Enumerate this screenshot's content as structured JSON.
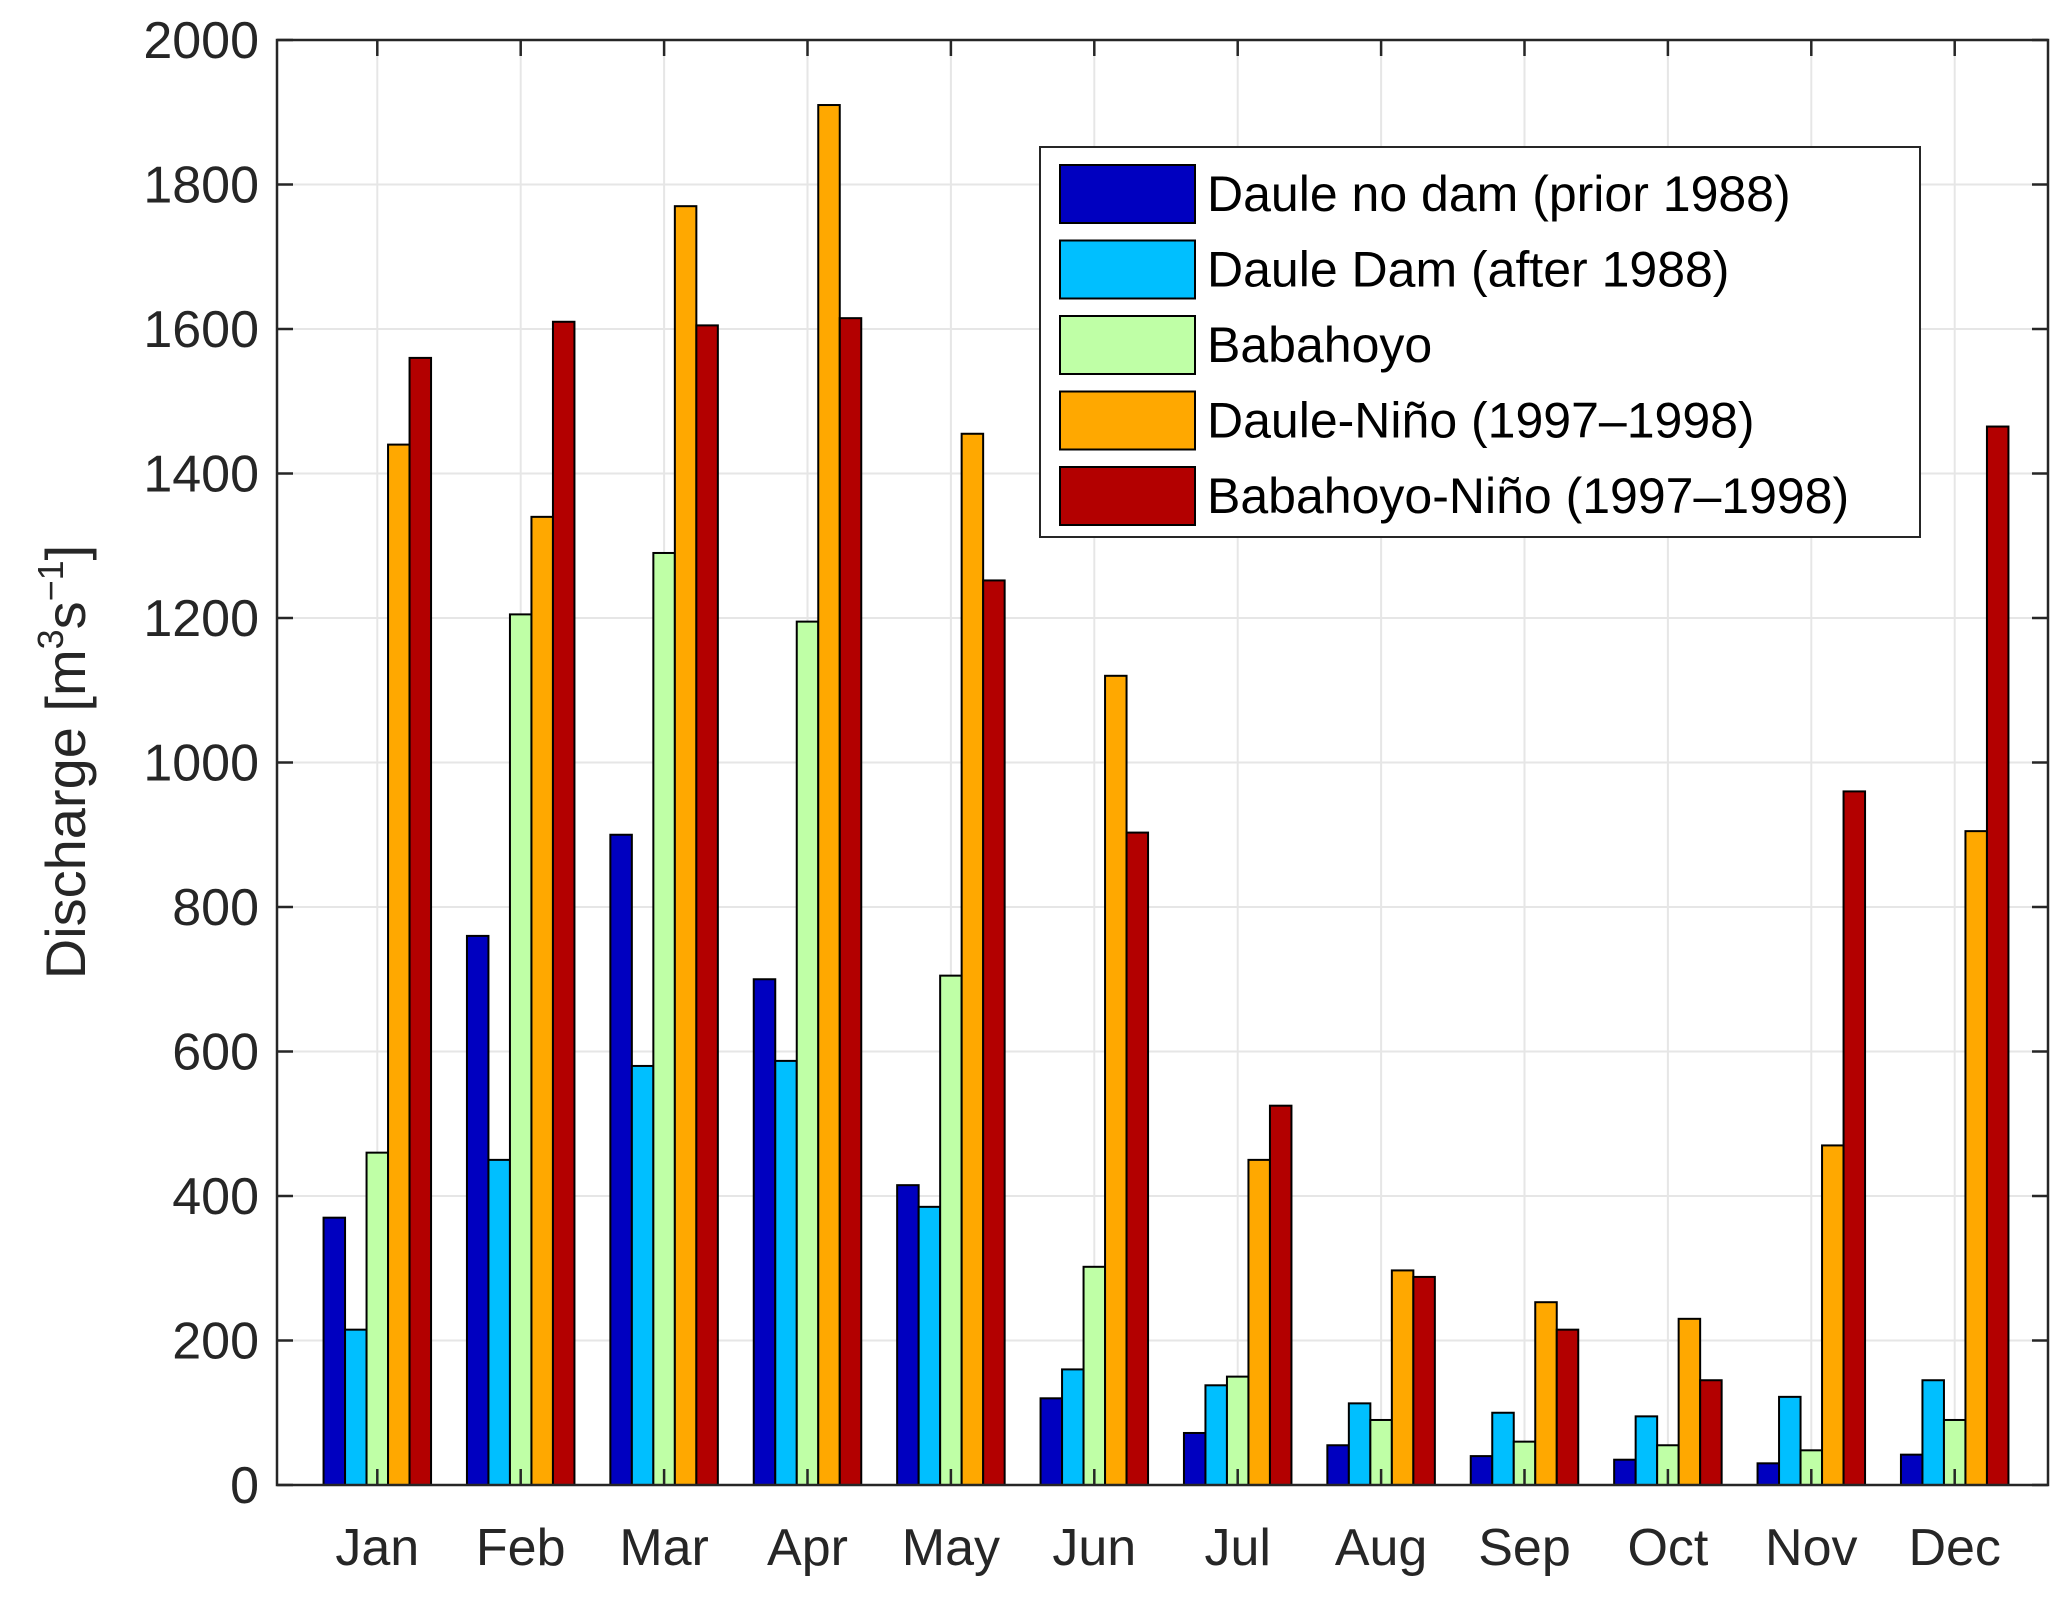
{
  "chart_data": {
    "type": "bar",
    "categories": [
      "Jan",
      "Feb",
      "Mar",
      "Apr",
      "May",
      "Jun",
      "Jul",
      "Aug",
      "Sep",
      "Oct",
      "Nov",
      "Dec"
    ],
    "series": [
      {
        "name": "Daule no dam (prior 1988)",
        "color": "#0000c0",
        "values": [
          370,
          760,
          900,
          700,
          415,
          120,
          72,
          55,
          40,
          35,
          30,
          42
        ]
      },
      {
        "name": "Daule Dam (after 1988)",
        "color": "#00bfff",
        "values": [
          215,
          450,
          580,
          587,
          385,
          160,
          138,
          113,
          100,
          95,
          122,
          145
        ]
      },
      {
        "name": "Babahoyo",
        "color": "#bfffa6",
        "values": [
          460,
          1205,
          1290,
          1195,
          705,
          302,
          150,
          90,
          60,
          55,
          48,
          90
        ]
      },
      {
        "name": "Daule-Niño (1997–1998)",
        "color": "#ffa800",
        "values": [
          1440,
          1340,
          1770,
          1910,
          1455,
          1120,
          450,
          297,
          253,
          230,
          470,
          905
        ]
      },
      {
        "name": "Babahoyo-Niño (1997–1998)",
        "color": "#b30000",
        "values": [
          1560,
          1610,
          1605,
          1615,
          1252,
          903,
          525,
          288,
          215,
          145,
          960,
          1465
        ]
      }
    ],
    "xlabel": "",
    "ylabel": {
      "main": "Discharge [m",
      "sup1": "3",
      "mid": "s",
      "sup2": "−1",
      "end": "]"
    },
    "ylim": [
      0,
      2000
    ],
    "yticks": [
      "0",
      "200",
      "400",
      "600",
      "800",
      "1000",
      "1200",
      "1400",
      "1600",
      "1800",
      "2000"
    ],
    "grid": true,
    "legend_position": "top-right"
  }
}
